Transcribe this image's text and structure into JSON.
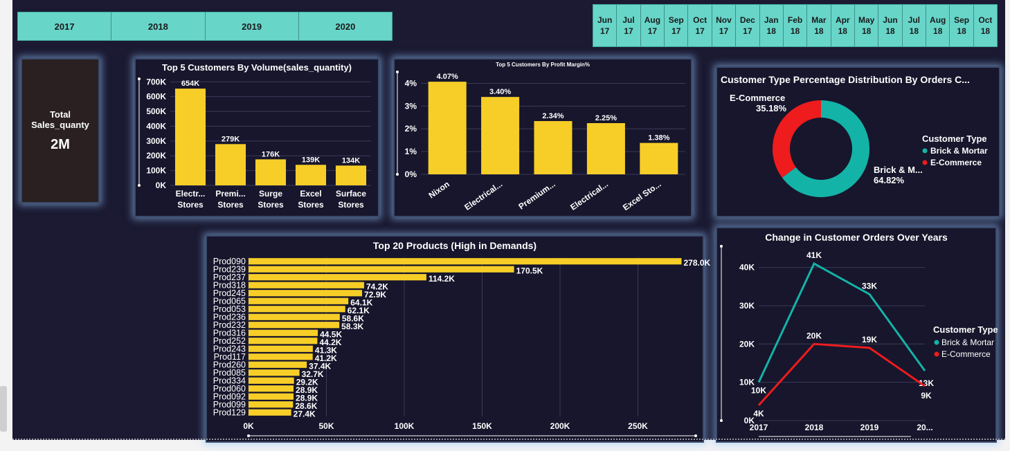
{
  "years": [
    "2017",
    "2018",
    "2019",
    "2020"
  ],
  "months": [
    {
      "m": "Jun",
      "y": "17"
    },
    {
      "m": "Jul",
      "y": "17"
    },
    {
      "m": "Aug",
      "y": "17"
    },
    {
      "m": "Sep",
      "y": "17"
    },
    {
      "m": "Oct",
      "y": "17"
    },
    {
      "m": "Nov",
      "y": "17"
    },
    {
      "m": "Dec",
      "y": "17"
    },
    {
      "m": "Jan",
      "y": "18"
    },
    {
      "m": "Feb",
      "y": "18"
    },
    {
      "m": "Mar",
      "y": "18"
    },
    {
      "m": "Apr",
      "y": "18"
    },
    {
      "m": "May",
      "y": "18"
    },
    {
      "m": "Jun",
      "y": "18"
    },
    {
      "m": "Jul",
      "y": "18"
    },
    {
      "m": "Aug",
      "y": "18"
    },
    {
      "m": "Sep",
      "y": "18"
    },
    {
      "m": "Oct",
      "y": "18"
    }
  ],
  "kpi": {
    "title": "Total Sales_quanty",
    "value": "2M"
  },
  "colors": {
    "bar": "#f7ce27",
    "teal": "#14b3a7",
    "red": "#ee1c1c",
    "grid": "#3b3b5a",
    "slicer": "#68d5c9"
  },
  "chart_data": [
    {
      "id": "volume",
      "type": "bar",
      "title": "Top 5 Customers By Volume(sales_quantity)",
      "categories": [
        [
          "Electr...",
          "Stores"
        ],
        [
          "Premi...",
          "Stores"
        ],
        [
          "Surge",
          "Stores"
        ],
        [
          "Excel",
          "Stores"
        ],
        [
          "Surface",
          "Stores"
        ]
      ],
      "values": [
        654000,
        279000,
        176000,
        139000,
        134000
      ],
      "labels": [
        "654K",
        "279K",
        "176K",
        "139K",
        "134K"
      ],
      "yticks": [
        0,
        100000,
        200000,
        300000,
        400000,
        500000,
        600000,
        700000
      ],
      "ytick_labels": [
        "0K",
        "100K",
        "200K",
        "300K",
        "400K",
        "500K",
        "600K",
        "700K"
      ],
      "ylim": [
        0,
        720000
      ]
    },
    {
      "id": "margin",
      "type": "bar",
      "title": "Top 5 Customers By Profit Margin%",
      "categories": [
        "Nixon",
        "Electrical...",
        "Premium...",
        "Electrical...",
        "Excel Sto..."
      ],
      "values": [
        4.07,
        3.4,
        2.34,
        2.25,
        1.38
      ],
      "labels": [
        "4.07%",
        "3.40%",
        "2.34%",
        "2.25%",
        "1.38%"
      ],
      "yticks": [
        0,
        1,
        2,
        3,
        4
      ],
      "ytick_labels": [
        "0%",
        "1%",
        "2%",
        "3%",
        "4%"
      ],
      "ylim": [
        0,
        4.5
      ]
    },
    {
      "id": "donut",
      "type": "pie",
      "title": "Customer Type Percentage Distribution By Orders C...",
      "slices": [
        {
          "name": "Brick & Mortar",
          "value": 64.82,
          "label_name": "Brick & M...",
          "label_pct": "64.82%",
          "color": "#14b3a7"
        },
        {
          "name": "E-Commerce",
          "value": 35.18,
          "label_name": "E-Commerce",
          "label_pct": "35.18%",
          "color": "#ee1c1c"
        }
      ],
      "legend_title": "Customer Type",
      "legend_placement": "right"
    },
    {
      "id": "products",
      "type": "bar",
      "orientation": "horizontal",
      "title": "Top 20 Products (High in Demands)",
      "categories": [
        "Prod090",
        "Prod239",
        "Prod237",
        "Prod318",
        "Prod245",
        "Prod065",
        "Prod053",
        "Prod236",
        "Prod232",
        "Prod316",
        "Prod252",
        "Prod243",
        "Prod117",
        "Prod260",
        "Prod085",
        "Prod334",
        "Prod060",
        "Prod092",
        "Prod099",
        "Prod129"
      ],
      "values": [
        278000,
        170500,
        114200,
        74200,
        72900,
        64100,
        62100,
        58600,
        58300,
        44500,
        44200,
        41300,
        41200,
        37400,
        32700,
        29200,
        28900,
        28900,
        28600,
        27400
      ],
      "labels": [
        "278.0K",
        "170.5K",
        "114.2K",
        "74.2K",
        "72.9K",
        "64.1K",
        "62.1K",
        "58.6K",
        "58.3K",
        "44.5K",
        "44.2K",
        "41.3K",
        "41.2K",
        "37.4K",
        "32.7K",
        "29.2K",
        "28.9K",
        "28.9K",
        "28.6K",
        "27.4K"
      ],
      "xticks": [
        0,
        50000,
        100000,
        150000,
        200000,
        250000
      ],
      "xtick_labels": [
        "0K",
        "50K",
        "100K",
        "150K",
        "200K",
        "250K"
      ],
      "xlim": [
        0,
        280000
      ]
    },
    {
      "id": "orders",
      "type": "line",
      "title": "Change in Customer Orders Over Years",
      "x": [
        "2017",
        "2018",
        "2019",
        "20..."
      ],
      "series": [
        {
          "name": "Brick & Mortar",
          "values": [
            10000,
            41000,
            33000,
            13000
          ],
          "labels": [
            "10K",
            "41K",
            "33K",
            "13K"
          ],
          "color": "#14b3a7"
        },
        {
          "name": "E-Commerce",
          "values": [
            4000,
            20000,
            19000,
            9000
          ],
          "labels": [
            "4K",
            "20K",
            "19K",
            "9K"
          ],
          "color": "#ee1c1c"
        }
      ],
      "yticks": [
        0,
        10000,
        20000,
        30000,
        40000
      ],
      "ytick_labels": [
        "0K",
        "10K",
        "20K",
        "30K",
        "40K"
      ],
      "ylim": [
        0,
        43000
      ],
      "legend_title": "Customer Type",
      "legend_placement": "right"
    }
  ]
}
